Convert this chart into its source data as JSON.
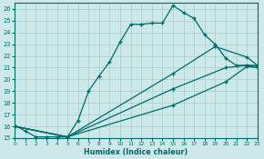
{
  "xlabel": "Humidex (Indice chaleur)",
  "background_color": "#cce8e8",
  "grid_color": "#aacccc",
  "line_color": "#006b6b",
  "xlim": [
    0,
    23
  ],
  "ylim": [
    15,
    26.5
  ],
  "yticks": [
    15,
    16,
    17,
    18,
    19,
    20,
    21,
    22,
    23,
    24,
    25,
    26
  ],
  "xticks": [
    0,
    1,
    2,
    3,
    4,
    5,
    6,
    7,
    8,
    9,
    10,
    11,
    12,
    13,
    14,
    15,
    16,
    17,
    18,
    19,
    20,
    21,
    22,
    23
  ],
  "series0_x": [
    0,
    1,
    2,
    3,
    4,
    5,
    6,
    7,
    8,
    9,
    10,
    11,
    12,
    13,
    14,
    15,
    16,
    17,
    18,
    19,
    20,
    21,
    22,
    23
  ],
  "series0_y": [
    16.1,
    15.6,
    15.1,
    15.1,
    15.1,
    15.1,
    16.5,
    19.0,
    20.3,
    21.5,
    23.2,
    24.7,
    24.7,
    24.8,
    24.8,
    26.3,
    25.7,
    25.2,
    23.8,
    23.0,
    21.8,
    21.2,
    21.2,
    21.2
  ],
  "series1_x": [
    0,
    5,
    15,
    19,
    22,
    23
  ],
  "series1_y": [
    16.0,
    15.1,
    20.5,
    22.8,
    21.9,
    21.2
  ],
  "series2_x": [
    0,
    5,
    15,
    20,
    22,
    23
  ],
  "series2_y": [
    16.0,
    15.1,
    19.2,
    21.0,
    21.2,
    21.1
  ],
  "series3_x": [
    0,
    5,
    15,
    20,
    22,
    23
  ],
  "series3_y": [
    16.0,
    15.1,
    17.8,
    19.8,
    21.1,
    21.0
  ]
}
